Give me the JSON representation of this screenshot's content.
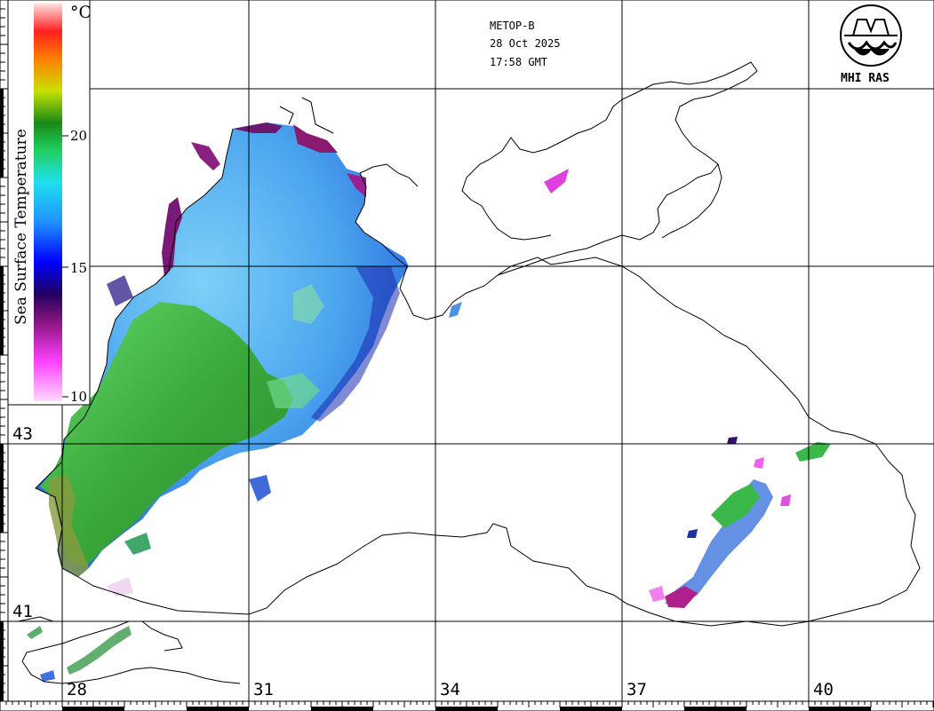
{
  "satellite": "METOP-B",
  "date": "28 Oct 2025",
  "time": "17:58 GMT",
  "logo_text": "MHI RAS",
  "legend": {
    "title": "Sea Surface Temperature",
    "unit": "°C",
    "ticks": [
      "20",
      "15",
      "10"
    ],
    "min": 10,
    "max": 24
  },
  "axes": {
    "longitude_labels": [
      "28",
      "31",
      "34",
      "37",
      "40"
    ],
    "latitude_labels": [
      "43",
      "41"
    ]
  },
  "colors": {
    "coast": "#000000",
    "grid": "#000000",
    "warm_green": "#3aa83a",
    "cool_blue": "#3fa7f0",
    "cold_purple": "#8a1a70"
  }
}
